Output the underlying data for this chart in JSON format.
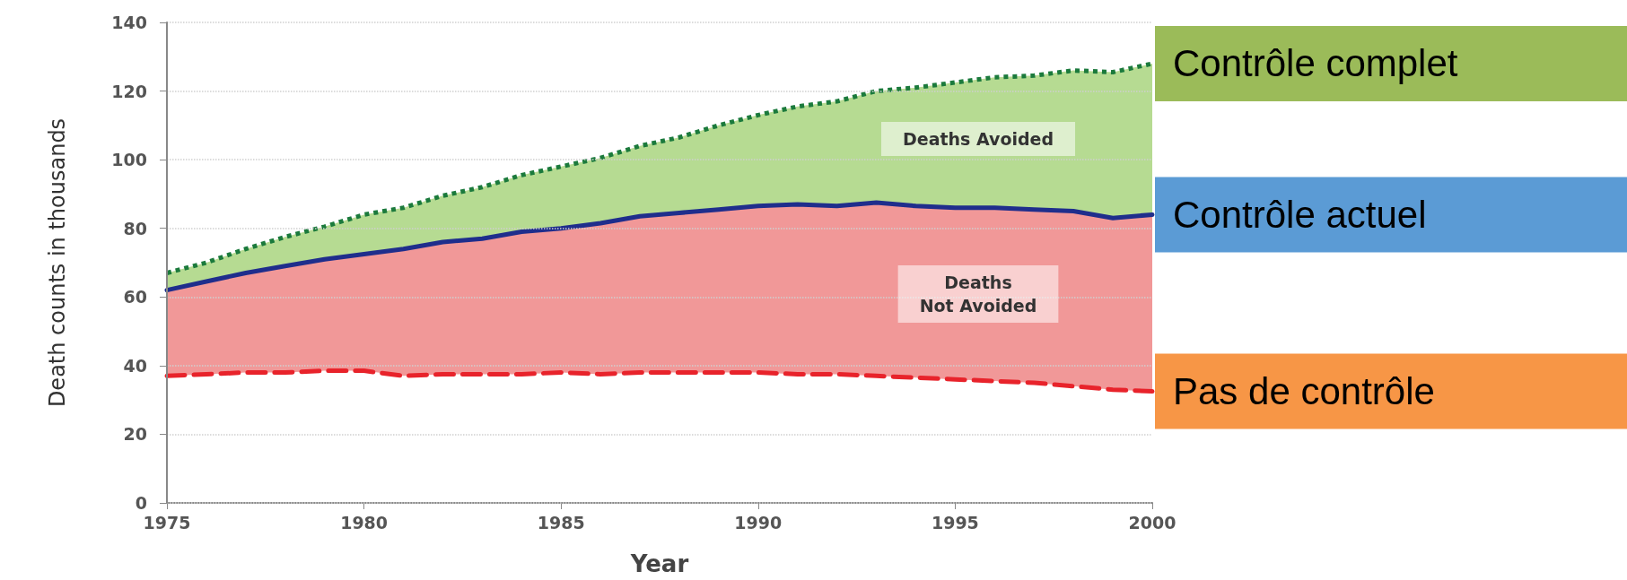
{
  "chart_data": {
    "type": "line",
    "xlabel": "Year",
    "ylabel": "Death counts in thousands",
    "x": [
      1975,
      1976,
      1977,
      1978,
      1979,
      1980,
      1981,
      1982,
      1983,
      1984,
      1985,
      1986,
      1987,
      1988,
      1989,
      1990,
      1991,
      1992,
      1993,
      1994,
      1995,
      1996,
      1997,
      1998,
      1999,
      2000
    ],
    "series": [
      {
        "name": "Contrôle complet",
        "color": "#1b7a3c",
        "line_style": "dotted",
        "values": [
          67,
          70,
          74,
          77.5,
          80.5,
          84,
          86,
          89.5,
          92,
          95.5,
          98,
          100.5,
          104,
          106.5,
          110,
          113,
          115.5,
          117,
          120,
          121,
          122.5,
          124,
          124.5,
          126,
          125.5,
          128
        ]
      },
      {
        "name": "Contrôle actuel",
        "color": "#1f2e8c",
        "line_style": "solid",
        "values": [
          62,
          64.5,
          67,
          69,
          71,
          72.5,
          74,
          76,
          77,
          79,
          80,
          81.5,
          83.5,
          84.5,
          85.5,
          86.5,
          87,
          86.5,
          87.5,
          86.5,
          86,
          86,
          85.5,
          85,
          83,
          84
        ]
      },
      {
        "name": "Pas de contrôle",
        "color": "#e8232b",
        "line_style": "dashed",
        "values": [
          37,
          37.5,
          38,
          38,
          38.5,
          38.5,
          37,
          37.5,
          37.5,
          37.5,
          38,
          37.5,
          38,
          38,
          38,
          38,
          37.5,
          37.5,
          37,
          36.5,
          36,
          35.5,
          35,
          34,
          33,
          32.5
        ]
      }
    ],
    "annotations": [
      "Deaths Avoided",
      "Deaths\nNot Avoided"
    ],
    "xlim": [
      1975,
      2000
    ],
    "xticks": [
      1975,
      1980,
      1985,
      1990,
      1995,
      2000
    ],
    "ylim": [
      0,
      140
    ],
    "yticks": [
      0,
      20,
      40,
      60,
      80,
      100,
      120,
      140
    ],
    "grid": "y",
    "marker": "none"
  }
}
